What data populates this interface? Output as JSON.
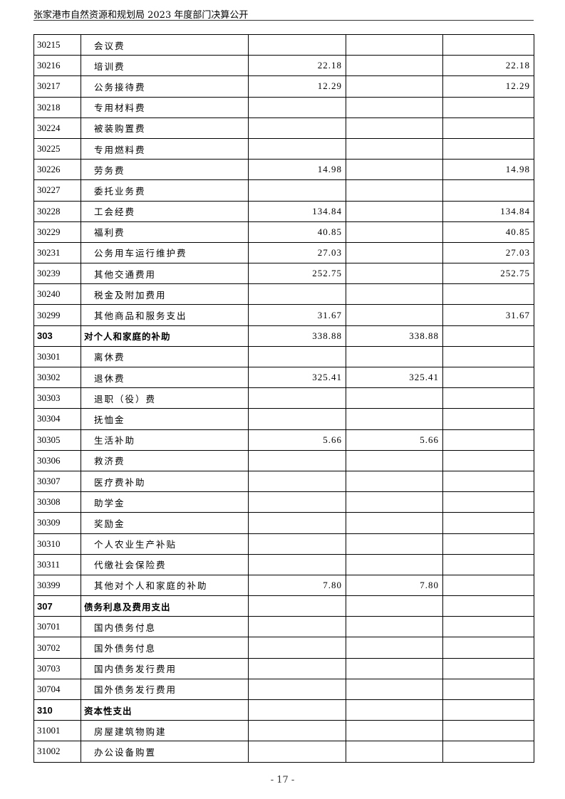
{
  "header": {
    "title": "张家港市自然资源和规划局 2023 年度部门决算公开"
  },
  "table": {
    "rows": [
      {
        "code": "30215",
        "name": "会议费",
        "c1": "",
        "c2": "",
        "c3": ""
      },
      {
        "code": "30216",
        "name": "培训费",
        "c1": "22.18",
        "c2": "",
        "c3": "22.18"
      },
      {
        "code": "30217",
        "name": "公务接待费",
        "c1": "12.29",
        "c2": "",
        "c3": "12.29"
      },
      {
        "code": "30218",
        "name": "专用材料费",
        "c1": "",
        "c2": "",
        "c3": ""
      },
      {
        "code": "30224",
        "name": "被装购置费",
        "c1": "",
        "c2": "",
        "c3": ""
      },
      {
        "code": "30225",
        "name": "专用燃料费",
        "c1": "",
        "c2": "",
        "c3": ""
      },
      {
        "code": "30226",
        "name": "劳务费",
        "c1": "14.98",
        "c2": "",
        "c3": "14.98"
      },
      {
        "code": "30227",
        "name": "委托业务费",
        "c1": "",
        "c2": "",
        "c3": ""
      },
      {
        "code": "30228",
        "name": "工会经费",
        "c1": "134.84",
        "c2": "",
        "c3": "134.84"
      },
      {
        "code": "30229",
        "name": "福利费",
        "c1": "40.85",
        "c2": "",
        "c3": "40.85"
      },
      {
        "code": "30231",
        "name": "公务用车运行维护费",
        "c1": "27.03",
        "c2": "",
        "c3": "27.03"
      },
      {
        "code": "30239",
        "name": "其他交通费用",
        "c1": "252.75",
        "c2": "",
        "c3": "252.75"
      },
      {
        "code": "30240",
        "name": "税金及附加费用",
        "c1": "",
        "c2": "",
        "c3": ""
      },
      {
        "code": "30299",
        "name": "其他商品和服务支出",
        "c1": "31.67",
        "c2": "",
        "c3": "31.67"
      },
      {
        "code": "303",
        "name": "对个人和家庭的补助",
        "c1": "338.88",
        "c2": "338.88",
        "c3": "",
        "category": true
      },
      {
        "code": "30301",
        "name": "离休费",
        "c1": "",
        "c2": "",
        "c3": ""
      },
      {
        "code": "30302",
        "name": "退休费",
        "c1": "325.41",
        "c2": "325.41",
        "c3": ""
      },
      {
        "code": "30303",
        "name": "退职（役）费",
        "c1": "",
        "c2": "",
        "c3": ""
      },
      {
        "code": "30304",
        "name": "抚恤金",
        "c1": "",
        "c2": "",
        "c3": ""
      },
      {
        "code": "30305",
        "name": "生活补助",
        "c1": "5.66",
        "c2": "5.66",
        "c3": ""
      },
      {
        "code": "30306",
        "name": "救济费",
        "c1": "",
        "c2": "",
        "c3": ""
      },
      {
        "code": "30307",
        "name": "医疗费补助",
        "c1": "",
        "c2": "",
        "c3": ""
      },
      {
        "code": "30308",
        "name": "助学金",
        "c1": "",
        "c2": "",
        "c3": ""
      },
      {
        "code": "30309",
        "name": "奖励金",
        "c1": "",
        "c2": "",
        "c3": ""
      },
      {
        "code": "30310",
        "name": "个人农业生产补贴",
        "c1": "",
        "c2": "",
        "c3": ""
      },
      {
        "code": "30311",
        "name": "代缴社会保险费",
        "c1": "",
        "c2": "",
        "c3": ""
      },
      {
        "code": "30399",
        "name": "其他对个人和家庭的补助",
        "c1": "7.80",
        "c2": "7.80",
        "c3": ""
      },
      {
        "code": "307",
        "name": "债务利息及费用支出",
        "c1": "",
        "c2": "",
        "c3": "",
        "category": true
      },
      {
        "code": "30701",
        "name": "国内债务付息",
        "c1": "",
        "c2": "",
        "c3": ""
      },
      {
        "code": "30702",
        "name": "国外债务付息",
        "c1": "",
        "c2": "",
        "c3": ""
      },
      {
        "code": "30703",
        "name": "国内债务发行费用",
        "c1": "",
        "c2": "",
        "c3": ""
      },
      {
        "code": "30704",
        "name": "国外债务发行费用",
        "c1": "",
        "c2": "",
        "c3": ""
      },
      {
        "code": "310",
        "name": "资本性支出",
        "c1": "",
        "c2": "",
        "c3": "",
        "category": true
      },
      {
        "code": "31001",
        "name": "房屋建筑物购建",
        "c1": "",
        "c2": "",
        "c3": ""
      },
      {
        "code": "31002",
        "name": "办公设备购置",
        "c1": "",
        "c2": "",
        "c3": ""
      }
    ]
  },
  "footer": {
    "page": "- 17 -"
  }
}
